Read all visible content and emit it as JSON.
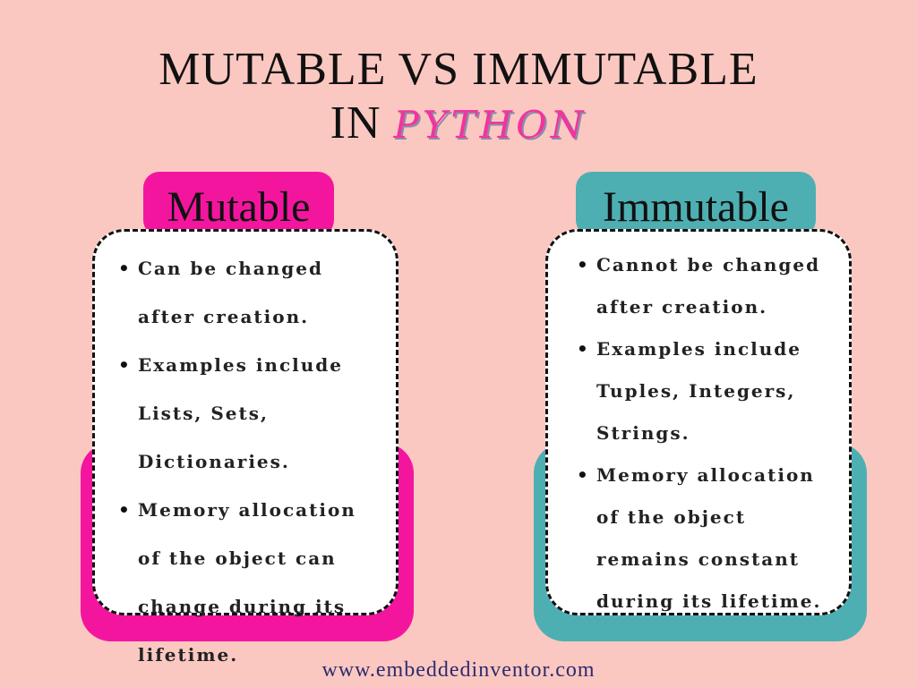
{
  "title": {
    "line1": "MUTABLE VS IMMUTABLE",
    "line2_prefix": "IN",
    "line2_highlight": "PYTHON"
  },
  "colors": {
    "background": "#fbc8c1",
    "mutable_accent": "#f4159f",
    "immutable_accent": "#4eafb3",
    "python_text": "#f0359e"
  },
  "mutable": {
    "heading": "Mutable",
    "items": [
      "Can be changed after creation.",
      "Examples include Lists, Sets, Dictionaries.",
      "Memory allocation of the object can change during its lifetime."
    ]
  },
  "immutable": {
    "heading": "Immutable",
    "items": [
      "Cannot be changed after creation.",
      "Examples include Tuples, Integers, Strings.",
      "Memory allocation of the object remains constant during its lifetime."
    ]
  },
  "footer": {
    "url": "www.embeddedinventor.com"
  }
}
